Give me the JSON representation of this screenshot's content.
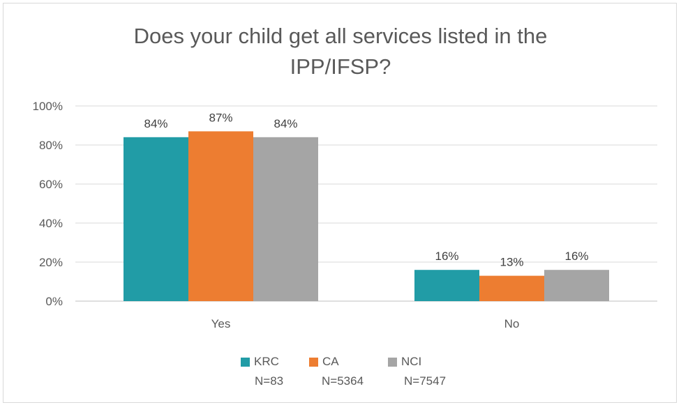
{
  "chart_data": {
    "type": "bar",
    "title": "Does your child get all services listed in the\nIPP/IFSP?",
    "categories": [
      "Yes",
      "No"
    ],
    "series": [
      {
        "name": "KRC",
        "n_label": "N=83",
        "color": "#219ca6",
        "values": [
          84,
          16
        ],
        "labels": [
          "84%",
          "16%"
        ]
      },
      {
        "name": "CA",
        "n_label": "N=5364",
        "color": "#ed7d31",
        "values": [
          87,
          13
        ],
        "labels": [
          "87%",
          "13%"
        ]
      },
      {
        "name": "NCI",
        "n_label": "N=7547",
        "color": "#a5a5a5",
        "values": [
          84,
          16
        ],
        "labels": [
          "84%",
          "16%"
        ]
      }
    ],
    "ylim": [
      0,
      100
    ],
    "yticks": [
      0,
      20,
      40,
      60,
      80,
      100
    ],
    "ytick_labels": [
      "0%",
      "20%",
      "40%",
      "60%",
      "80%",
      "100%"
    ],
    "grid": true,
    "legend_position": "bottom"
  }
}
